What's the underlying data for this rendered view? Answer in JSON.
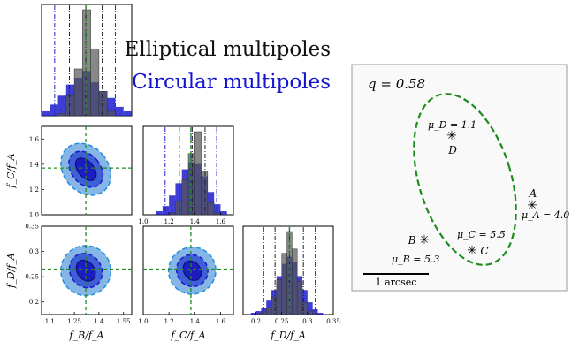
{
  "legend": {
    "elliptical": "Elliptical multipoles",
    "circular": "Circular multipoles",
    "elliptical_color": "#111111",
    "circular_color": "#1515d0"
  },
  "colors": {
    "elliptical_hist": "#555555",
    "circular_hist": "#1c1ccc",
    "contour_dark": "#1a1acc",
    "contour_light": "#86b6e6",
    "contour_edge": "#1f8fe0",
    "truth_line": "#1e8c1e",
    "quantile_black": "#222222",
    "quantile_blue": "#2222cc",
    "caustic": "#1e8c1e"
  },
  "chart_data": [
    {
      "type": "histogram",
      "param": "fB/fA",
      "xlim": [
        1.05,
        1.6
      ],
      "truth": 1.32,
      "xtick_labels": [
        "1.1",
        "1.25",
        "1.4",
        "1.55"
      ],
      "xticks": [
        1.1,
        1.25,
        1.4,
        1.55
      ],
      "xlabel": "f_B/f_A",
      "elliptical_quantiles": [
        1.22,
        1.32,
        1.42
      ],
      "circular_quantiles": [
        1.13,
        1.32,
        1.5
      ],
      "bins": [
        1.05,
        1.1,
        1.15,
        1.2,
        1.25,
        1.3,
        1.35,
        1.4,
        1.45,
        1.5,
        1.55,
        1.6
      ],
      "elliptical_counts": [
        0,
        0,
        2,
        18,
        42,
        95,
        60,
        22,
        4,
        0,
        0
      ],
      "circular_counts": [
        4,
        10,
        18,
        28,
        34,
        40,
        30,
        22,
        16,
        8,
        4
      ]
    },
    {
      "type": "histogram",
      "param": "fC/fA",
      "xlim": [
        1.0,
        1.7
      ],
      "truth": 1.37,
      "xtick_labels": [
        "1.0",
        "1.2",
        "1.4",
        "1.6"
      ],
      "xticks": [
        1.0,
        1.2,
        1.4,
        1.6
      ],
      "xlabel": "f_C/f_A",
      "elliptical_quantiles": [
        1.28,
        1.38,
        1.48
      ],
      "circular_quantiles": [
        1.17,
        1.37,
        1.57
      ],
      "bins": [
        1.1,
        1.15,
        1.2,
        1.25,
        1.3,
        1.35,
        1.4,
        1.45,
        1.5,
        1.55,
        1.6,
        1.65
      ],
      "elliptical_counts": [
        0,
        0,
        2,
        16,
        40,
        70,
        95,
        50,
        14,
        2,
        0
      ],
      "circular_counts": [
        4,
        10,
        22,
        36,
        52,
        60,
        58,
        44,
        26,
        12,
        4
      ]
    },
    {
      "type": "histogram",
      "param": "fD/fA",
      "xlim": [
        0.175,
        0.35
      ],
      "truth": 0.265,
      "xtick_labels": [
        "0.2",
        "0.25",
        "0.3",
        "0.35"
      ],
      "xticks": [
        0.2,
        0.25,
        0.3,
        0.35
      ],
      "xlabel": "f_D/f_A",
      "elliptical_quantiles": [
        0.237,
        0.265,
        0.292
      ],
      "circular_quantiles": [
        0.215,
        0.265,
        0.315
      ],
      "bins": [
        0.19,
        0.2,
        0.21,
        0.22,
        0.23,
        0.24,
        0.25,
        0.26,
        0.27,
        0.28,
        0.29,
        0.3,
        0.31,
        0.32,
        0.33
      ],
      "elliptical_counts": [
        0,
        1,
        3,
        8,
        20,
        40,
        70,
        95,
        75,
        38,
        14,
        4,
        1,
        0
      ],
      "circular_counts": [
        2,
        4,
        8,
        16,
        28,
        44,
        58,
        66,
        60,
        44,
        28,
        14,
        6,
        2
      ]
    },
    {
      "type": "contour",
      "x_param": "fB/fA",
      "y_param": "fC/fA",
      "xlim": [
        1.05,
        1.6
      ],
      "ylim": [
        1.0,
        1.7
      ],
      "truth": [
        1.32,
        1.37
      ],
      "yticks": [
        1.0,
        1.2,
        1.4,
        1.6
      ],
      "ytick_labels": [
        "1.0",
        "1.2",
        "1.4",
        "1.6"
      ],
      "ylabel": "f_C/f_A",
      "center": [
        1.32,
        1.36
      ],
      "elliptical_sigma1": {
        "rx": 0.06,
        "ry": 0.13,
        "angle": 40
      },
      "elliptical_sigma2": {
        "rx": 0.11,
        "ry": 0.2,
        "angle": 40
      },
      "circular_sigma1": {
        "rx": 0.1,
        "ry": 0.18,
        "angle": 40
      },
      "circular_sigma2": {
        "rx": 0.17,
        "ry": 0.28,
        "angle": 40
      }
    },
    {
      "type": "contour",
      "x_param": "fB/fA",
      "y_param": "fD/fA",
      "xlim": [
        1.05,
        1.6
      ],
      "ylim": [
        0.175,
        0.35
      ],
      "truth": [
        1.32,
        0.265
      ],
      "yticks": [
        0.2,
        0.25,
        0.3,
        0.35
      ],
      "ytick_labels": [
        "0.2",
        "0.25",
        "0.3",
        "0.35"
      ],
      "ylabel": "f_D/f_A",
      "center": [
        1.32,
        0.262
      ],
      "elliptical_sigma1": {
        "rx": 0.065,
        "ry": 0.028,
        "angle": 35
      },
      "elliptical_sigma2": {
        "rx": 0.12,
        "ry": 0.044,
        "angle": 35
      },
      "circular_sigma1": {
        "rx": 0.1,
        "ry": 0.04,
        "angle": 35
      },
      "circular_sigma2": {
        "rx": 0.19,
        "ry": 0.062,
        "angle": 30
      }
    },
    {
      "type": "contour",
      "x_param": "fC/fA",
      "y_param": "fD/fA",
      "xlim": [
        1.0,
        1.7
      ],
      "ylim": [
        0.175,
        0.35
      ],
      "truth": [
        1.37,
        0.265
      ],
      "center": [
        1.38,
        0.262
      ],
      "elliptical_sigma1": {
        "rx": 0.08,
        "ry": 0.026,
        "angle": 35
      },
      "elliptical_sigma2": {
        "rx": 0.15,
        "ry": 0.04,
        "angle": 35
      },
      "circular_sigma1": {
        "rx": 0.13,
        "ry": 0.038,
        "angle": 35
      },
      "circular_sigma2": {
        "rx": 0.23,
        "ry": 0.058,
        "angle": 30
      }
    }
  ],
  "lens_panel": {
    "q_label": "q = 0.58",
    "scale_bar_label": "1 arcsec",
    "images": [
      {
        "name": "A",
        "mu": "μ_A = 4.0"
      },
      {
        "name": "B",
        "mu": "μ_B = 5.3"
      },
      {
        "name": "C",
        "mu": "μ_C = 5.5"
      },
      {
        "name": "D",
        "mu": "μ_D = 1.1"
      }
    ]
  }
}
